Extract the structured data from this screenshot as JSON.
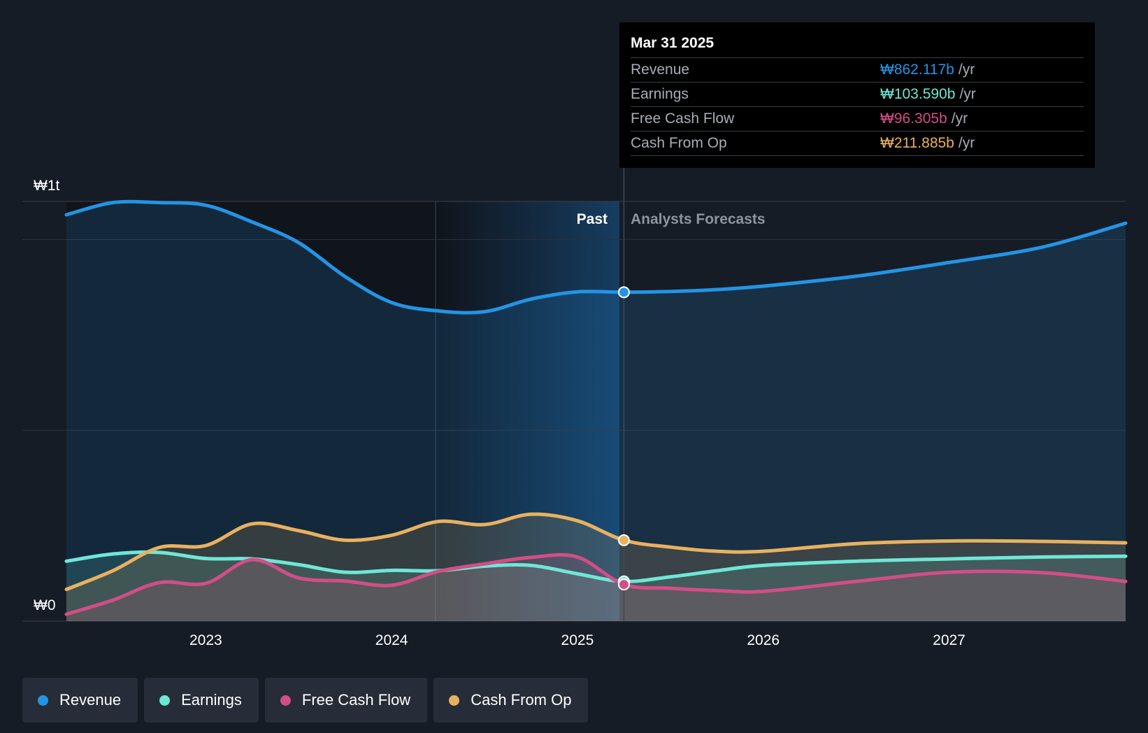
{
  "chart_data": {
    "type": "area",
    "y_axis": {
      "top_label": "₩1t",
      "bottom_label": "₩0",
      "ylim": [
        0,
        1100
      ]
    },
    "x_axis": {
      "tick_labels": [
        "2023",
        "2024",
        "2025",
        "2026",
        "2027"
      ],
      "xlim": [
        2022.25,
        2027.95
      ]
    },
    "past_label": "Past",
    "forecast_label": "Analysts Forecasts",
    "divider_x": 2025.25,
    "series": [
      {
        "name": "Revenue",
        "color": "#2394e4",
        "x": [
          2022.25,
          2022.5,
          2022.75,
          2023.0,
          2023.25,
          2023.5,
          2023.75,
          2024.0,
          2024.25,
          2024.5,
          2024.75,
          2025.0,
          2025.25,
          2025.5,
          2025.75,
          2026.0,
          2026.5,
          2027.0,
          2027.5,
          2027.95
        ],
        "values": [
          1065,
          1097,
          1097,
          1090,
          1046,
          992,
          903,
          835,
          813,
          811,
          844,
          863,
          862,
          864,
          869,
          878,
          904,
          940,
          980,
          1043
        ]
      },
      {
        "name": "Earnings",
        "color": "#6ee7d6",
        "x": [
          2022.25,
          2022.5,
          2022.75,
          2023.0,
          2023.25,
          2023.5,
          2023.75,
          2024.0,
          2024.25,
          2024.5,
          2024.75,
          2025.0,
          2025.25,
          2025.5,
          2025.75,
          2026.0,
          2026.5,
          2027.0,
          2027.5,
          2027.95
        ],
        "values": [
          157,
          176,
          180,
          164,
          163,
          148,
          128,
          133,
          132,
          144,
          146,
          124,
          104,
          116,
          132,
          146,
          157,
          163,
          168,
          170
        ]
      },
      {
        "name": "Free Cash Flow",
        "color": "#d14e86",
        "x": [
          2022.25,
          2022.5,
          2022.75,
          2023.0,
          2023.25,
          2023.5,
          2023.75,
          2024.0,
          2024.25,
          2024.5,
          2024.75,
          2025.0,
          2025.25,
          2025.5,
          2025.75,
          2026.0,
          2026.5,
          2027.0,
          2027.5,
          2027.95
        ],
        "values": [
          18,
          55,
          101,
          99,
          161,
          113,
          105,
          94,
          130,
          150,
          167,
          168,
          96,
          86,
          80,
          78,
          104,
          128,
          127,
          104
        ]
      },
      {
        "name": "Cash From Op",
        "color": "#e8b160",
        "x": [
          2022.25,
          2022.5,
          2022.75,
          2023.0,
          2023.25,
          2023.5,
          2023.75,
          2024.0,
          2024.25,
          2024.5,
          2024.75,
          2025.0,
          2025.25,
          2025.5,
          2025.75,
          2026.0,
          2026.5,
          2027.0,
          2027.5,
          2027.95
        ],
        "values": [
          83,
          132,
          193,
          198,
          255,
          237,
          212,
          225,
          261,
          253,
          280,
          263,
          212,
          194,
          183,
          183,
          203,
          210,
          209,
          205
        ]
      }
    ]
  },
  "tooltip": {
    "date": "Mar 31 2025",
    "rows": [
      {
        "label": "Revenue",
        "value": "₩862.117b",
        "unit": "/yr",
        "color": "#2394e4"
      },
      {
        "label": "Earnings",
        "value": "₩103.590b",
        "unit": "/yr",
        "color": "#6ee7d6"
      },
      {
        "label": "Free Cash Flow",
        "value": "₩96.305b",
        "unit": "/yr",
        "color": "#d14e86"
      },
      {
        "label": "Cash From Op",
        "value": "₩211.885b",
        "unit": "/yr",
        "color": "#e8b160"
      }
    ]
  },
  "legend": [
    {
      "label": "Revenue",
      "color": "#2394e4"
    },
    {
      "label": "Earnings",
      "color": "#6ee7d6"
    },
    {
      "label": "Free Cash Flow",
      "color": "#d14e86"
    },
    {
      "label": "Cash From Op",
      "color": "#e8b160"
    }
  ]
}
